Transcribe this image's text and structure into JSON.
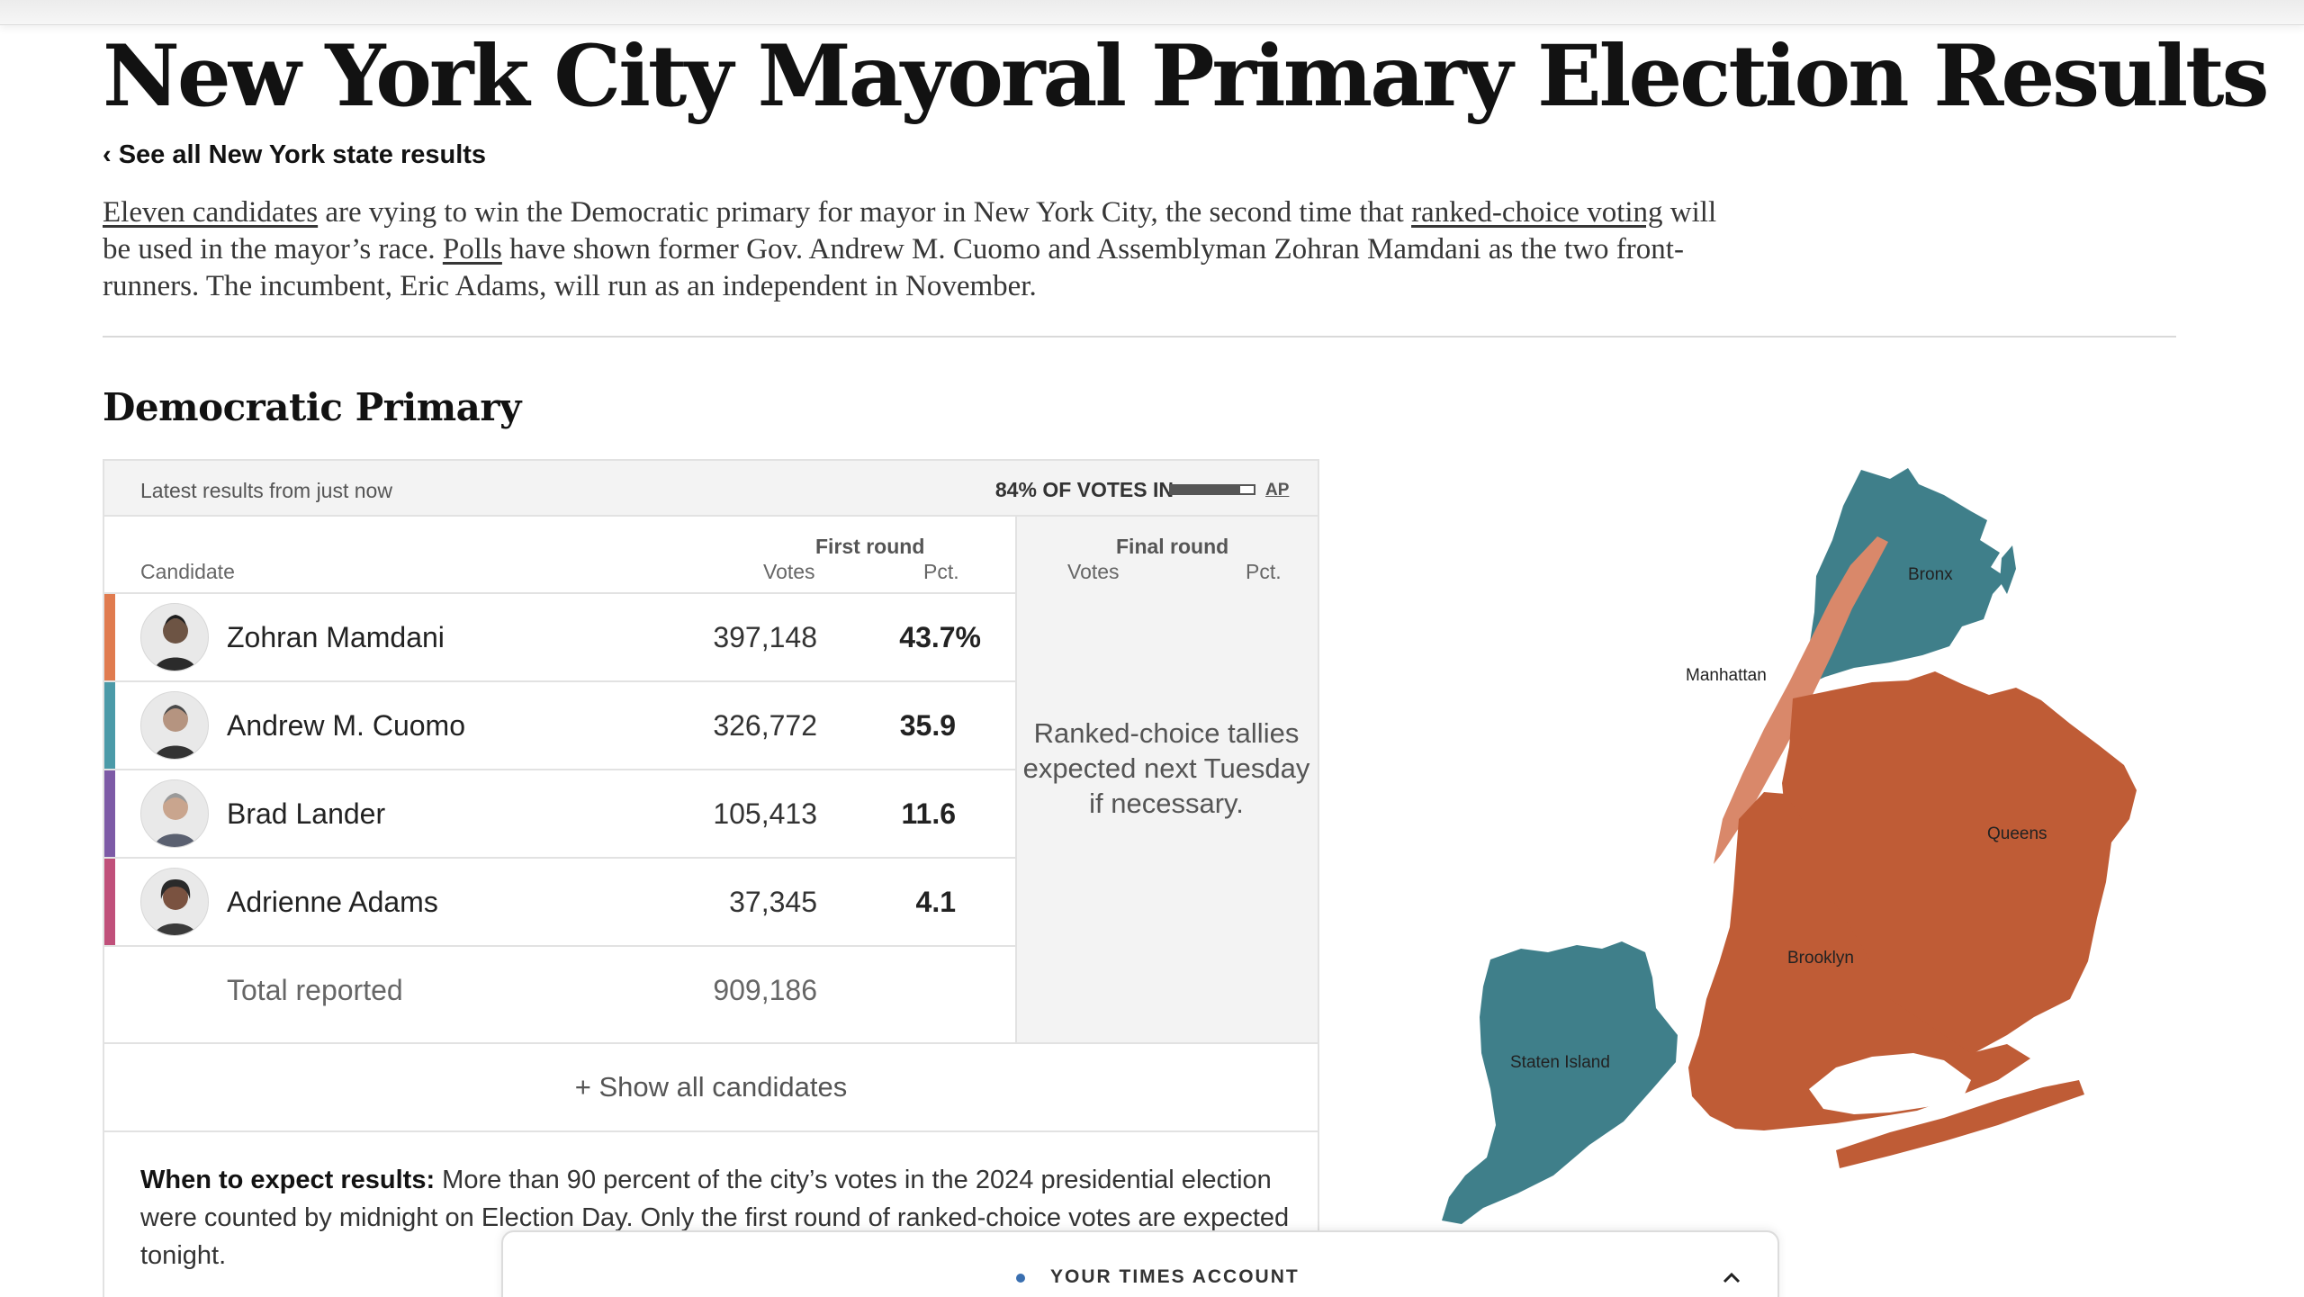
{
  "page": {
    "title": "New York City Mayoral Primary Election Results",
    "back_link": "‹ See all New York state results"
  },
  "intro": {
    "link1": "Eleven candidates",
    "text1": " are vying to win the Democratic primary for mayor in New York City, the second time that ",
    "link2": "ranked-choice voting",
    "text2": " will be used in the mayor’s race. ",
    "link3": "Polls",
    "text3": " have shown former Gov. Andrew M. Cuomo and Assemblyman Zohran Mamdani as the two front-runners. The incumbent, Eric Adams, will run as an independent in November."
  },
  "section": {
    "title": "Democratic Primary"
  },
  "status": {
    "latest": "Latest results from just now",
    "votes_in": "84% OF VOTES IN",
    "votes_in_fraction": 0.84,
    "source": "AP"
  },
  "table": {
    "candidate_header": "Candidate",
    "first_round": "First round",
    "final_round": "Final round",
    "votes_header": "Votes",
    "pct_header": "Pct.",
    "ranked_choice_note": "Ranked-choice tallies expected next Tuesday if necessary.",
    "rows": [
      {
        "name": "Zohran Mamdani",
        "votes": "397,148",
        "pct": "43.7%",
        "color": "#e07b4f"
      },
      {
        "name": "Andrew M. Cuomo",
        "votes": "326,772",
        "pct": "35.9",
        "color": "#4b9aa8"
      },
      {
        "name": "Brad Lander",
        "votes": "105,413",
        "pct": "11.6",
        "color": "#7d5aa6"
      },
      {
        "name": "Adrienne Adams",
        "votes": "37,345",
        "pct": "4.1",
        "color": "#c0507a"
      }
    ],
    "total_label": "Total reported",
    "total_votes": "909,186",
    "show_all": "+ Show all candidates"
  },
  "expect": {
    "label": "When to expect results:",
    "text": " More than 90 percent of the city’s votes in the 2024 presidential election were counted by midnight on Election Day. Only the first round of ranked-choice votes are expected tonight."
  },
  "map": {
    "labels": {
      "bronx": "Bronx",
      "manhattan": "Manhattan",
      "queens": "Queens",
      "brooklyn": "Brooklyn",
      "staten_island": "Staten Island"
    },
    "colors": {
      "cuomo": "#3f7f8a",
      "mamdani_strong": "#bf5c36",
      "mamdani_light": "#d9886a"
    }
  },
  "account": {
    "label": "YOUR TIMES ACCOUNT"
  }
}
